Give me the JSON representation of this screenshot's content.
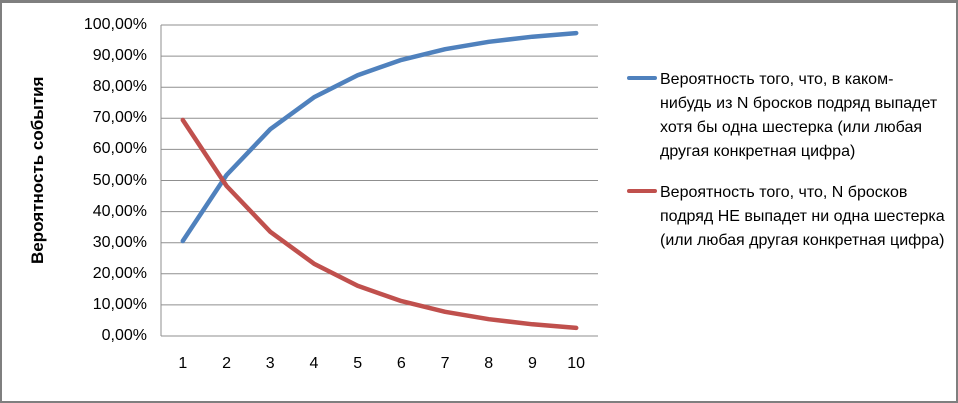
{
  "frame": {
    "border_color": "#7f7f7f",
    "background_color": "#ffffff"
  },
  "chart_data": {
    "type": "line",
    "title": "",
    "xlabel": "",
    "ylabel": "Вероятность события",
    "x": [
      1,
      2,
      3,
      4,
      5,
      6,
      7,
      8,
      9,
      10
    ],
    "x_tick_labels": [
      "1",
      "2",
      "3",
      "4",
      "5",
      "6",
      "7",
      "8",
      "9",
      "10"
    ],
    "y_tick_labels": [
      "100,00%",
      "90,00%",
      "80,00%",
      "70,00%",
      "60,00%",
      "50,00%",
      "40,00%",
      "30,00%",
      "20,00%",
      "10,00%",
      "0,00%"
    ],
    "ylim": [
      0,
      100
    ],
    "y_unit": "percent",
    "grid": "horizontal",
    "gridline_color": "#8f8f8f",
    "axis_line_color": "#8f8f8f",
    "legend_position": "right",
    "series": [
      {
        "name": "Вероятность того, что, в каком-нибудь из N бросков подряд выпадет хотя бы одна шестерка (или любая другая конкретная цифра)",
        "color": "#4F81BD",
        "values_percent": [
          30.56,
          51.77,
          66.51,
          76.74,
          83.85,
          88.78,
          92.21,
          94.59,
          96.24,
          97.39
        ]
      },
      {
        "name": "Вероятность того, что,  N бросков подряд НЕ выпадет ни одна шестерка (или любая другая конкретная цифра)",
        "color": "#C0504D",
        "values_percent": [
          69.44,
          48.23,
          33.49,
          23.26,
          16.15,
          11.22,
          7.79,
          5.41,
          3.76,
          2.61
        ]
      }
    ]
  }
}
